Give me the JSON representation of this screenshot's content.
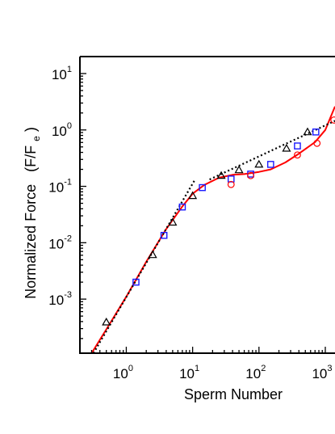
{
  "chart_data": {
    "type": "scatter",
    "xlabel": "Sperm Number",
    "ylabel": "Normalized Force",
    "ylabel_suffix": "(F/F",
    "ylabel_sub": "e",
    "ylabel_close": ")",
    "x_scale": "log",
    "y_scale": "log",
    "xlim": [
      0.2,
      1400
    ],
    "ylim": [
      0.00011,
      20
    ],
    "x_ticks": [
      {
        "base": "10",
        "exp": "0",
        "value": 1
      },
      {
        "base": "10",
        "exp": "1",
        "value": 10
      },
      {
        "base": "10",
        "exp": "2",
        "value": 100
      },
      {
        "base": "10",
        "exp": "3",
        "value": 1000
      }
    ],
    "y_ticks": [
      {
        "base": "10",
        "exp": "-3",
        "value": 0.001
      },
      {
        "base": "10",
        "exp": "-2",
        "value": 0.01
      },
      {
        "base": "10",
        "exp": "-1",
        "value": 0.1
      },
      {
        "base": "10",
        "exp": "0",
        "value": 1
      },
      {
        "base": "10",
        "exp": "1",
        "value": 10
      }
    ],
    "grid": false,
    "series": [
      {
        "marker": "triangle",
        "color": "#000000",
        "points": [
          [
            0.5,
            0.00039
          ],
          [
            2.5,
            0.0061
          ],
          [
            5.0,
            0.023
          ],
          [
            10,
            0.068
          ],
          [
            27,
            0.155
          ],
          [
            50,
            0.195
          ],
          [
            100,
            0.245
          ],
          [
            260,
            0.47
          ],
          [
            540,
            0.92
          ]
        ]
      },
      {
        "marker": "square",
        "color": "#1a1aff",
        "edge_color": "#1a1aff",
        "fill": "#ffffff",
        "points": [
          [
            1.4,
            0.002
          ],
          [
            3.7,
            0.0135
          ],
          [
            7.0,
            0.043
          ],
          [
            14,
            0.095
          ],
          [
            38,
            0.135
          ],
          [
            75,
            0.165
          ],
          [
            150,
            0.245
          ],
          [
            380,
            0.52
          ],
          [
            720,
            0.92
          ]
        ]
      },
      {
        "marker": "circle",
        "color": "#ff0000",
        "points": [
          [
            38,
            0.108
          ],
          [
            75,
            0.155
          ],
          [
            380,
            0.36
          ],
          [
            750,
            0.58
          ],
          [
            1350,
            1.5
          ]
        ]
      },
      {
        "style": "solid-line",
        "color": "#ff0000",
        "points": [
          [
            0.3,
            0.00011
          ],
          [
            0.5,
            0.00029
          ],
          [
            1,
            0.0011
          ],
          [
            2,
            0.0046
          ],
          [
            4,
            0.0175
          ],
          [
            7,
            0.044
          ],
          [
            10,
            0.074
          ],
          [
            15,
            0.106
          ],
          [
            25,
            0.142
          ],
          [
            40,
            0.16
          ],
          [
            60,
            0.165
          ],
          [
            100,
            0.18
          ],
          [
            150,
            0.2
          ],
          [
            250,
            0.265
          ],
          [
            400,
            0.38
          ],
          [
            700,
            0.61
          ],
          [
            1000,
            1.0
          ],
          [
            1400,
            2.6
          ]
        ]
      },
      {
        "style": "dotted-line",
        "color": "#000000",
        "points": [
          [
            0.32,
            0.00011
          ],
          [
            11,
            0.135
          ]
        ]
      },
      {
        "style": "dotted-line",
        "color": "#000000",
        "points": [
          [
            18,
            0.132
          ],
          [
            1400,
            1.45
          ]
        ]
      }
    ]
  }
}
